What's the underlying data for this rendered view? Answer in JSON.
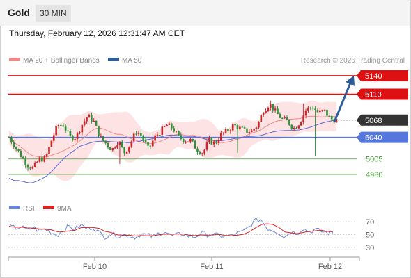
{
  "header": {
    "symbol": "Gold",
    "timeframe": "30 MIN"
  },
  "datetime": "Thursday, February 12, 2026 12:31:47 AM CET",
  "legend": {
    "ma20": "MA 20 + Bollinger Bands",
    "ma50": "MA 50",
    "copyright": "Research © 2026 Trading Central"
  },
  "rsi_legend": {
    "rsi": "RSI",
    "ma9": "9MA"
  },
  "colors": {
    "resistance": "#dd1111",
    "support_main": "#5577dd",
    "support_minor": "#4a9a3a",
    "bullish": "#c9262b",
    "bearish": "#2f8f3a",
    "current": "#333333",
    "arrow": "#2e5b9a",
    "ma20": "#f08888",
    "ma50": "#5b6ad0",
    "bands": "#fde3e3",
    "rsi": "#6b86d8",
    "rsi_ma": "#dd2222"
  },
  "chart_data": {
    "type": "candlestick",
    "x_ticks": [
      "Feb 10",
      "Feb 11",
      "Feb 12"
    ],
    "price_levels": [
      {
        "label": "5140",
        "value": 5140,
        "kind": "resistance"
      },
      {
        "label": "5110",
        "value": 5110,
        "kind": "resistance"
      },
      {
        "label": "5068",
        "value": 5068,
        "kind": "current"
      },
      {
        "label": "5040",
        "value": 5040,
        "kind": "support"
      },
      {
        "label": "5005",
        "value": 5005,
        "kind": "support-minor"
      },
      {
        "label": "4980",
        "value": 4980,
        "kind": "support-minor"
      }
    ],
    "arrow": {
      "from": 5065,
      "to": 5140,
      "direction": "up"
    },
    "price_range": [
      4945,
      5150
    ],
    "close_path": [
      5040,
      5025,
      5010,
      4995,
      4990,
      5005,
      5005,
      5035,
      5060,
      5060,
      5040,
      5040,
      5060,
      5075,
      5065,
      5040,
      5030,
      5020,
      5035,
      5015,
      5030,
      5050,
      5040,
      5020,
      5040,
      5050,
      5060,
      5055,
      5040,
      5035,
      5035,
      5020,
      5015,
      5035,
      5030,
      5045,
      5050,
      5060,
      5055,
      5050,
      5050,
      5060,
      5085,
      5095,
      5080,
      5070,
      5065,
      5055,
      5065,
      5085,
      5090,
      5080,
      5083,
      5070,
      5068
    ],
    "rsi": {
      "ticks": [
        70,
        50,
        30
      ],
      "range": [
        20,
        80
      ],
      "values": [
        63,
        60,
        62,
        57,
        61,
        56,
        59,
        54,
        49,
        57,
        63,
        58,
        65,
        59,
        62,
        53,
        46,
        52,
        48,
        50,
        47,
        46,
        51,
        49,
        47,
        52,
        55,
        48,
        49,
        52,
        47,
        46,
        53,
        50,
        49,
        49,
        47,
        48,
        52,
        54,
        62,
        72,
        74,
        60,
        57,
        53,
        46,
        55,
        52,
        60,
        54,
        58,
        55,
        53,
        52
      ]
    }
  }
}
